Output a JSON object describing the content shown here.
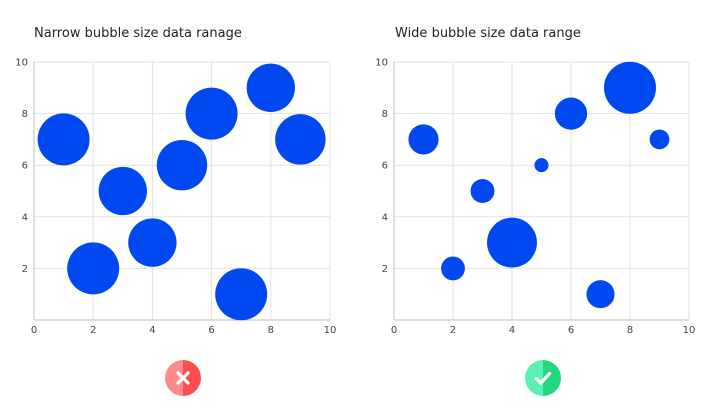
{
  "chart_data": [
    {
      "type": "scatter",
      "title": "Narrow bubble size data ranage",
      "xlabel": "",
      "ylabel": "",
      "xlim": [
        0,
        10
      ],
      "ylim": [
        0,
        10
      ],
      "xticks": [
        "0",
        "2",
        "4",
        "6",
        "8",
        "10"
      ],
      "yticks": [
        "2",
        "4",
        "6",
        "8",
        "10"
      ],
      "grid": true,
      "bubble_color": "#0048f0",
      "points": [
        {
          "x": 1,
          "y": 7,
          "size": 1.0
        },
        {
          "x": 2,
          "y": 2,
          "size": 1.0
        },
        {
          "x": 3,
          "y": 5,
          "size": 0.93
        },
        {
          "x": 4,
          "y": 3,
          "size": 0.93
        },
        {
          "x": 5,
          "y": 6,
          "size": 0.97
        },
        {
          "x": 6,
          "y": 8,
          "size": 1.0
        },
        {
          "x": 7,
          "y": 1,
          "size": 1.0
        },
        {
          "x": 8,
          "y": 9,
          "size": 0.93
        },
        {
          "x": 9,
          "y": 7,
          "size": 0.97
        }
      ],
      "status": "incorrect",
      "status_icon": "x-icon",
      "status_colors": [
        "#ff8b8b",
        "#fb4f4f"
      ]
    },
    {
      "type": "scatter",
      "title": "Wide bubble size data range",
      "xlabel": "",
      "ylabel": "",
      "xlim": [
        0,
        10
      ],
      "ylim": [
        0,
        10
      ],
      "xticks": [
        "0",
        "2",
        "4",
        "6",
        "8",
        "10"
      ],
      "yticks": [
        "2",
        "4",
        "6",
        "8",
        "10"
      ],
      "grid": true,
      "bubble_color": "#0048f0",
      "points": [
        {
          "x": 1,
          "y": 7,
          "size": 0.58
        },
        {
          "x": 2,
          "y": 2,
          "size": 0.46
        },
        {
          "x": 3,
          "y": 5,
          "size": 0.46
        },
        {
          "x": 4,
          "y": 3,
          "size": 0.96
        },
        {
          "x": 5,
          "y": 6,
          "size": 0.27
        },
        {
          "x": 6,
          "y": 8,
          "size": 0.62
        },
        {
          "x": 7,
          "y": 1,
          "size": 0.54
        },
        {
          "x": 8,
          "y": 9,
          "size": 1.0
        },
        {
          "x": 9,
          "y": 7,
          "size": 0.38
        }
      ],
      "status": "correct",
      "status_icon": "check-icon",
      "status_colors": [
        "#5cf0b4",
        "#21d87f"
      ]
    }
  ]
}
